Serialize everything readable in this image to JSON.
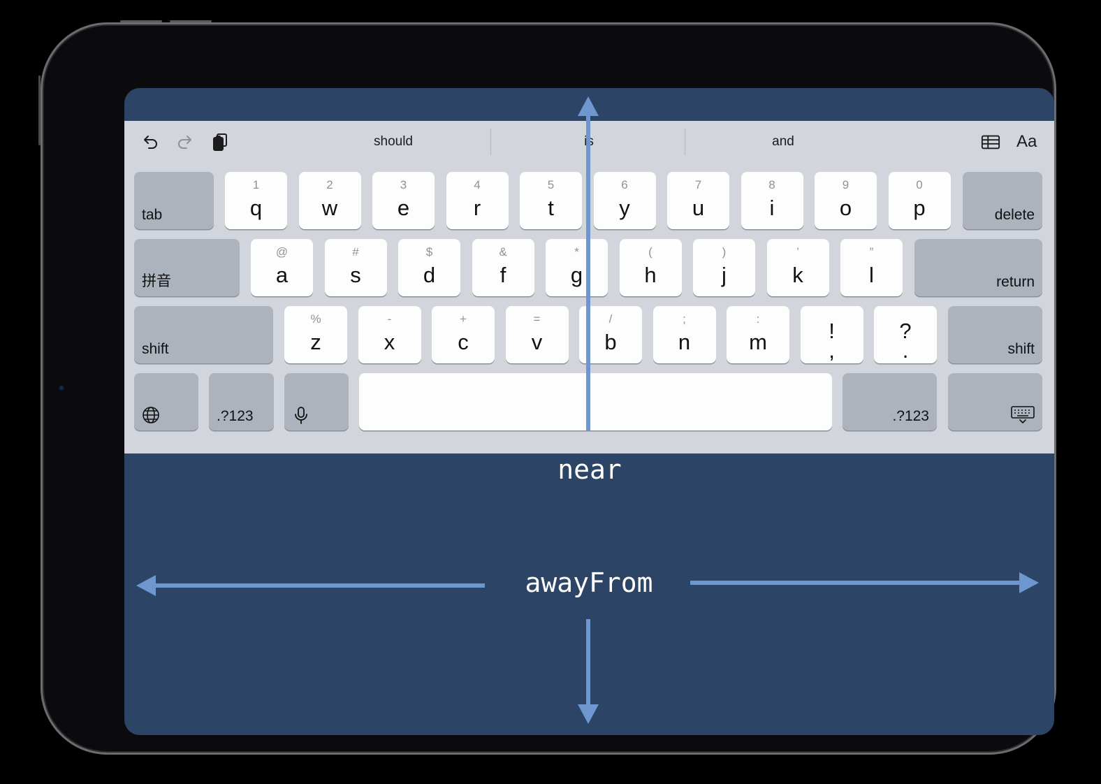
{
  "toolbar": {
    "predictions": [
      "should",
      "is",
      "and"
    ],
    "format_label": "Aa"
  },
  "rows": {
    "row1": [
      {
        "sec": "1",
        "pri": "q"
      },
      {
        "sec": "2",
        "pri": "w"
      },
      {
        "sec": "3",
        "pri": "e"
      },
      {
        "sec": "4",
        "pri": "r"
      },
      {
        "sec": "5",
        "pri": "t"
      },
      {
        "sec": "6",
        "pri": "y"
      },
      {
        "sec": "7",
        "pri": "u"
      },
      {
        "sec": "8",
        "pri": "i"
      },
      {
        "sec": "9",
        "pri": "o"
      },
      {
        "sec": "0",
        "pri": "p"
      }
    ],
    "row2": [
      {
        "sec": "@",
        "pri": "a"
      },
      {
        "sec": "#",
        "pri": "s"
      },
      {
        "sec": "$",
        "pri": "d"
      },
      {
        "sec": "&",
        "pri": "f"
      },
      {
        "sec": "*",
        "pri": "g"
      },
      {
        "sec": "(",
        "pri": "h"
      },
      {
        "sec": ")",
        "pri": "j"
      },
      {
        "sec": "’",
        "pri": "k"
      },
      {
        "sec": "”",
        "pri": "l"
      }
    ],
    "row3": [
      {
        "sec": "%",
        "pri": "z"
      },
      {
        "sec": "-",
        "pri": "x"
      },
      {
        "sec": "+",
        "pri": "c"
      },
      {
        "sec": "=",
        "pri": "v"
      },
      {
        "sec": "/",
        "pri": "b"
      },
      {
        "sec": ";",
        "pri": "n"
      },
      {
        "sec": ":",
        "pri": "m"
      },
      {
        "sec": "",
        "pri": "!\n,"
      },
      {
        "sec": "",
        "pri": "?\n."
      }
    ]
  },
  "keys": {
    "tab": "tab",
    "delete": "delete",
    "pinyin": "拼音",
    "return": "return",
    "shift_left": "shift",
    "shift_right": "shift",
    "numbers_left": ".?123",
    "numbers_right": ".?123"
  },
  "annotations": {
    "near": "near",
    "away_from": "awayFrom"
  },
  "colors": {
    "screen_background": "#2c4566",
    "keyboard_background": "#d2d5db",
    "key_letter": "#fdfdfd",
    "key_function": "#adb3bd",
    "arrow": "#6f97cf"
  },
  "icons": {
    "toolbar": [
      "undo-icon",
      "redo-icon",
      "paste-icon",
      "table-icon"
    ],
    "bottom_row": [
      "globe-icon",
      "microphone-icon",
      "dismiss-keyboard-icon"
    ]
  }
}
